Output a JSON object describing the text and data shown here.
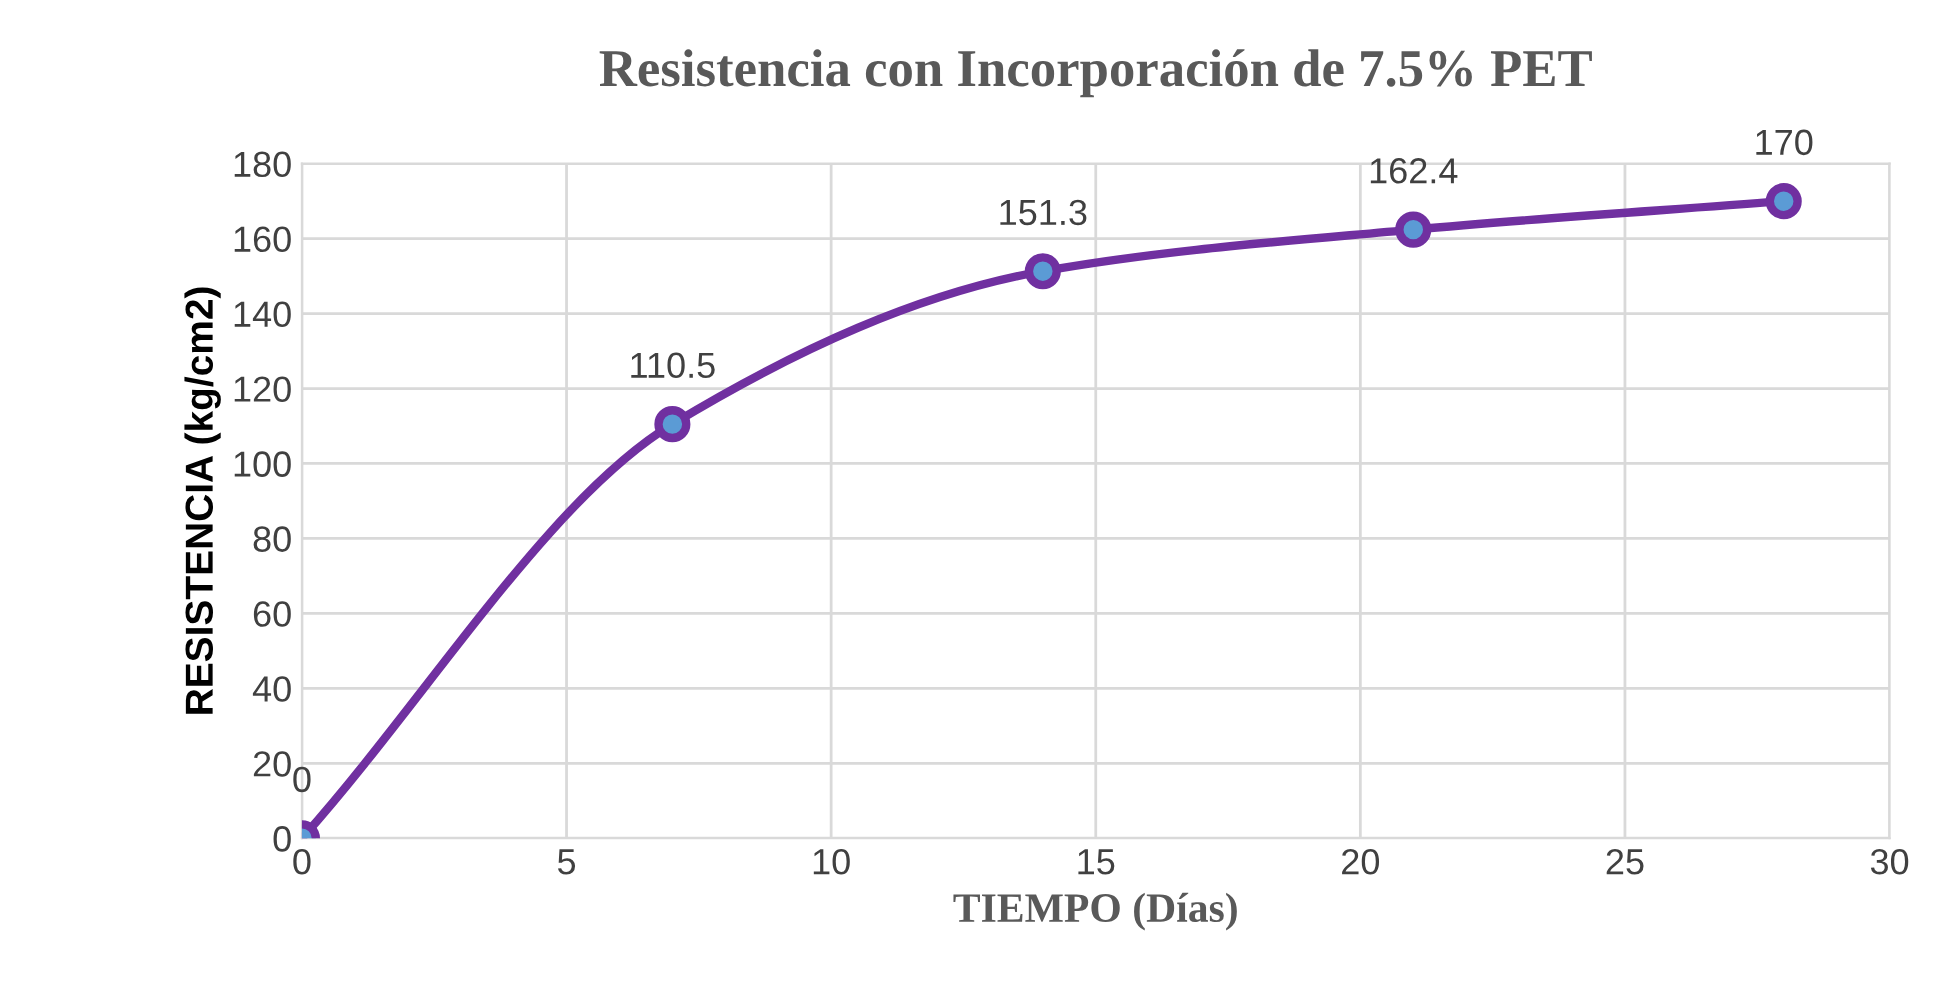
{
  "chart_data": {
    "type": "line",
    "title": "Resistencia con Incorporación de 7.5% PET",
    "xlabel": "TIEMPO (Días)",
    "ylabel": "RESISTENCIA (kg/cm2)",
    "x": [
      0,
      7,
      14,
      21,
      28
    ],
    "series": [
      {
        "color": "#7030a0",
        "values": [
          0,
          110.5,
          151.3,
          162.4,
          170
        ]
      }
    ],
    "xlim": [
      0,
      30
    ],
    "xticks": [
      0,
      5,
      10,
      15,
      20,
      25,
      30
    ],
    "ylim": [
      0,
      180
    ],
    "yticks": [
      0,
      20,
      40,
      60,
      80,
      100,
      120,
      140,
      160,
      180
    ],
    "grid": true,
    "marker": "circle",
    "line_style": "solid",
    "data_labels": true
  }
}
